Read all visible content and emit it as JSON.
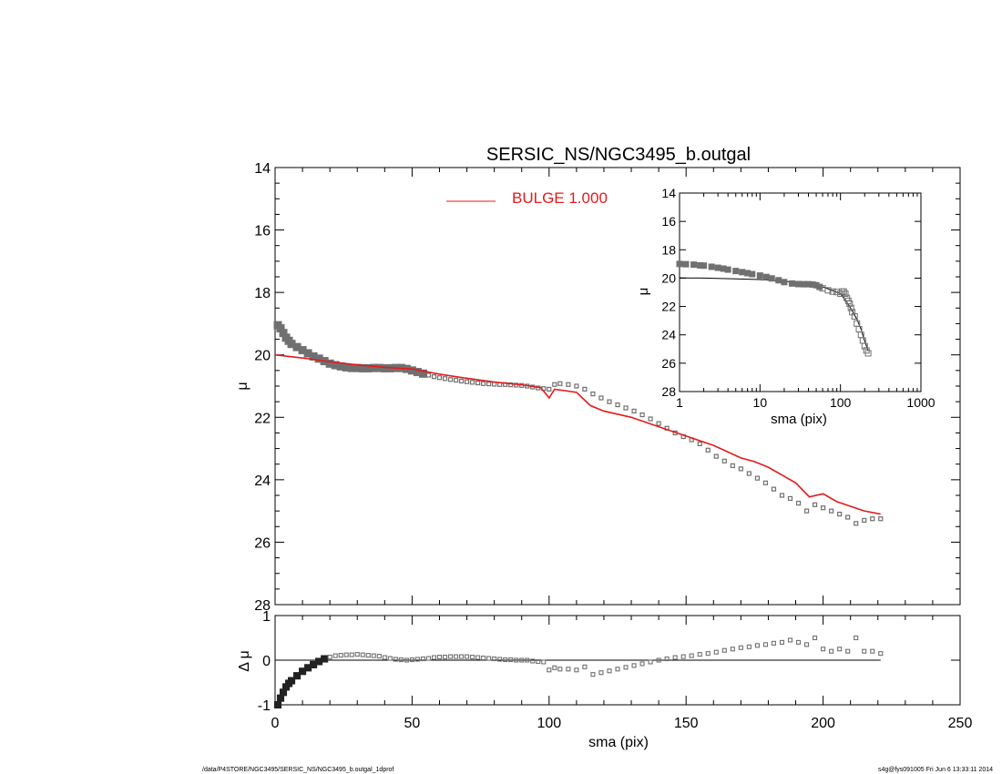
{
  "figure": {
    "title": "SERSIC_NS/NGC3495_b.outgal",
    "footer_left": "/data/P4STORE/NGC3495/SERSIC_NS/NGC3495_b.outgal_1dprof",
    "footer_right": "s4g@fys091005  Fri Jun  6 13:33:11 2014"
  },
  "colors": {
    "data_markers": "#707070",
    "model_line": "#e41a1c",
    "axes": "#000000"
  },
  "chart_data": [
    {
      "type": "scatter",
      "title": "SERSIC_NS/NGC3495_b.outgal",
      "ylabel": "μ",
      "xlim": [
        0,
        250
      ],
      "ylim": [
        28,
        14
      ],
      "y_inverted": true,
      "xticks": [
        "0",
        "50",
        "100",
        "150",
        "200",
        "250"
      ],
      "yticks": [
        "14",
        "16",
        "18",
        "20",
        "22",
        "24",
        "26",
        "28"
      ],
      "legend": {
        "position": "top-center",
        "label": "BULGE  1.000"
      },
      "series": [
        {
          "role": "data",
          "marker": "square",
          "x": [
            1,
            2,
            3,
            4,
            5,
            6,
            8,
            10,
            12,
            14,
            16,
            18,
            20,
            22,
            24,
            26,
            28,
            30,
            32,
            34,
            36,
            38,
            40,
            42,
            44,
            46,
            48,
            50,
            52,
            54,
            56,
            58,
            60,
            62,
            64,
            66,
            68,
            70,
            72,
            74,
            76,
            78,
            80,
            82,
            84,
            86,
            88,
            90,
            92,
            94,
            96,
            98,
            100,
            102,
            104,
            107,
            110,
            113,
            116,
            119,
            122,
            125,
            128,
            131,
            134,
            137,
            140,
            143,
            146,
            149,
            152,
            155,
            158,
            161,
            164,
            167,
            170,
            173,
            176,
            179,
            182,
            185,
            188,
            191,
            194,
            197,
            200,
            203,
            206,
            209,
            212,
            215,
            218,
            221
          ],
          "y": [
            19.05,
            19.15,
            19.3,
            19.45,
            19.55,
            19.65,
            19.75,
            19.85,
            19.95,
            20.05,
            20.12,
            20.2,
            20.28,
            20.33,
            20.37,
            20.4,
            20.42,
            20.42,
            20.43,
            20.43,
            20.42,
            20.42,
            20.43,
            20.43,
            20.42,
            20.42,
            20.45,
            20.5,
            20.55,
            20.6,
            20.65,
            20.7,
            20.73,
            20.76,
            20.79,
            20.81,
            20.84,
            20.86,
            20.88,
            20.9,
            20.92,
            20.93,
            20.94,
            20.95,
            20.95,
            20.96,
            20.97,
            20.98,
            21.0,
            21.03,
            21.06,
            21.08,
            21.1,
            20.95,
            20.92,
            20.95,
            21.0,
            21.1,
            21.25,
            21.38,
            21.5,
            21.6,
            21.7,
            21.8,
            21.92,
            22.05,
            22.2,
            22.35,
            22.5,
            22.62,
            22.72,
            22.85,
            23.05,
            23.25,
            23.4,
            23.55,
            23.65,
            23.8,
            23.95,
            24.1,
            24.3,
            24.5,
            24.6,
            24.75,
            25.0,
            24.8,
            24.9,
            25.0,
            25.1,
            25.2,
            25.4,
            25.3,
            25.25,
            25.25
          ]
        },
        {
          "role": "model",
          "name": "BULGE  1.000",
          "x": [
            0,
            10,
            20,
            30,
            40,
            50,
            60,
            70,
            80,
            90,
            97,
            100,
            102,
            110,
            115,
            120,
            130,
            140,
            150,
            160,
            165,
            170,
            175,
            180,
            185,
            190,
            195,
            200,
            205,
            210,
            215,
            221
          ],
          "y": [
            20.0,
            20.1,
            20.22,
            20.32,
            20.4,
            20.45,
            20.62,
            20.75,
            20.87,
            20.96,
            21.05,
            21.38,
            21.1,
            21.2,
            21.62,
            21.8,
            22.0,
            22.3,
            22.6,
            22.9,
            23.1,
            23.3,
            23.42,
            23.6,
            23.85,
            24.1,
            24.55,
            24.45,
            24.7,
            24.85,
            25.0,
            25.1
          ]
        }
      ]
    },
    {
      "type": "scatter",
      "xlabel": "sma (pix)",
      "ylabel": "Δ μ",
      "xlim": [
        0,
        250
      ],
      "ylim": [
        -1,
        1
      ],
      "xticks": [
        "0",
        "50",
        "100",
        "150",
        "200",
        "250"
      ],
      "yticks": [
        "-1",
        "0",
        "1"
      ],
      "reference_line": 0,
      "series": [
        {
          "role": "residual",
          "marker": "square",
          "x": [
            1,
            2,
            3,
            4,
            5,
            6,
            8,
            10,
            12,
            14,
            16,
            18,
            20,
            22,
            24,
            26,
            28,
            30,
            32,
            34,
            36,
            38,
            40,
            42,
            44,
            46,
            48,
            50,
            52,
            54,
            56,
            58,
            60,
            62,
            64,
            66,
            68,
            70,
            72,
            74,
            76,
            78,
            80,
            82,
            84,
            86,
            88,
            90,
            92,
            94,
            96,
            98,
            100,
            102,
            104,
            107,
            110,
            113,
            116,
            119,
            122,
            125,
            128,
            131,
            134,
            137,
            140,
            143,
            146,
            149,
            152,
            155,
            158,
            161,
            164,
            167,
            170,
            173,
            176,
            179,
            182,
            185,
            188,
            191,
            194,
            197,
            200,
            203,
            206,
            209,
            212,
            215,
            218,
            221
          ],
          "y": [
            -1.0,
            -0.85,
            -0.72,
            -0.6,
            -0.52,
            -0.46,
            -0.35,
            -0.25,
            -0.17,
            -0.1,
            -0.03,
            0.03,
            0.07,
            0.1,
            0.11,
            0.12,
            0.12,
            0.13,
            0.12,
            0.11,
            0.1,
            0.09,
            0.06,
            0.04,
            0.02,
            0.01,
            0.0,
            0.01,
            0.02,
            0.03,
            0.04,
            0.06,
            0.07,
            0.07,
            0.08,
            0.08,
            0.08,
            0.08,
            0.07,
            0.06,
            0.05,
            0.04,
            0.03,
            0.02,
            0.01,
            0.01,
            0.0,
            0.0,
            0.0,
            -0.02,
            -0.03,
            -0.04,
            -0.22,
            -0.17,
            -0.2,
            -0.2,
            -0.22,
            -0.15,
            -0.32,
            -0.28,
            -0.24,
            -0.2,
            -0.16,
            -0.12,
            -0.08,
            -0.04,
            0.0,
            0.03,
            0.06,
            0.08,
            0.1,
            0.13,
            0.15,
            0.18,
            0.22,
            0.25,
            0.28,
            0.3,
            0.33,
            0.35,
            0.38,
            0.4,
            0.45,
            0.4,
            0.35,
            0.5,
            0.25,
            0.2,
            0.25,
            0.2,
            0.5,
            0.2,
            0.2,
            0.15
          ]
        }
      ]
    },
    {
      "type": "scatter",
      "xlabel": "sma (pix)",
      "ylabel": "μ",
      "x_scale": "log",
      "xlim": [
        1,
        1000
      ],
      "ylim": [
        28,
        14
      ],
      "y_inverted": true,
      "xticks": [
        "1",
        "10",
        "100",
        "1000"
      ],
      "yticks": [
        "14",
        "16",
        "18",
        "20",
        "22",
        "24",
        "26",
        "28"
      ],
      "series": [
        {
          "role": "data",
          "marker": "square",
          "x": [
            1,
            1.2,
            1.5,
            1.8,
            2,
            2.5,
            3,
            3.5,
            4,
            5,
            6,
            7,
            8,
            10,
            12,
            14,
            17,
            20,
            25,
            30,
            35,
            40,
            45,
            50,
            55,
            60,
            70,
            80,
            90,
            100,
            105,
            110,
            115,
            120,
            125,
            130,
            135,
            140,
            150,
            160,
            170,
            180,
            190,
            200,
            210,
            221
          ],
          "y": [
            19.0,
            19.02,
            19.05,
            19.1,
            19.12,
            19.2,
            19.27,
            19.33,
            19.4,
            19.5,
            19.58,
            19.65,
            19.72,
            19.82,
            19.92,
            20.02,
            20.15,
            20.28,
            20.38,
            20.42,
            20.43,
            20.43,
            20.45,
            20.5,
            20.62,
            20.72,
            20.86,
            20.95,
            20.98,
            21.1,
            20.95,
            20.95,
            21.1,
            21.4,
            21.6,
            21.8,
            22.1,
            22.4,
            22.7,
            23.2,
            23.6,
            24.0,
            24.4,
            24.8,
            25.1,
            25.3
          ]
        },
        {
          "role": "model",
          "x": [
            1,
            2,
            5,
            10,
            20,
            30,
            50,
            70,
            100,
            120,
            140,
            160,
            180,
            200,
            221
          ],
          "y": [
            19.98,
            20.0,
            20.05,
            20.1,
            20.22,
            20.32,
            20.45,
            20.75,
            21.1,
            21.7,
            22.3,
            22.9,
            23.6,
            24.45,
            25.1
          ]
        }
      ]
    }
  ]
}
